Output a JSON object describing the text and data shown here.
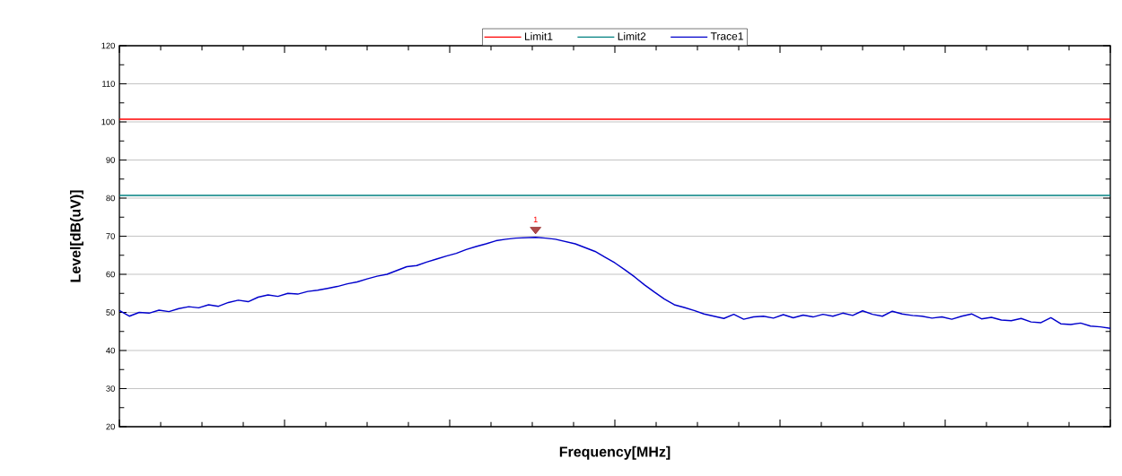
{
  "chart_data": {
    "type": "line",
    "xlabel": "Frequency[MHz]",
    "ylabel": "Level[dB(uV)]",
    "categories": [
      null,
      null,
      null,
      null,
      null,
      null,
      null,
      null,
      null,
      null,
      null,
      null,
      null,
      null,
      null,
      null,
      null,
      null,
      null,
      null,
      null,
      null,
      null,
      null,
      null,
      null,
      null,
      null,
      null,
      null,
      null,
      null,
      null,
      null,
      null,
      null,
      null,
      null,
      null,
      null,
      null,
      null,
      null,
      null,
      null,
      null,
      null,
      null,
      null,
      null,
      null,
      null,
      null,
      null,
      null,
      null,
      null,
      null,
      null,
      null,
      null,
      null,
      null,
      null,
      null,
      null,
      null,
      null,
      null,
      null,
      null,
      null,
      null,
      null,
      null,
      null,
      null,
      null,
      null,
      null,
      null,
      null,
      null,
      null,
      null,
      null,
      null,
      null,
      null,
      null,
      null,
      null,
      null,
      null,
      null,
      null,
      null,
      null,
      null,
      null,
      null
    ],
    "series": [
      {
        "name": "Limit1",
        "color": "#ff0000",
        "values": [
          100.7,
          100.7,
          100.7,
          100.7,
          100.7,
          100.7,
          100.7,
          100.7,
          100.7,
          100.7,
          100.7,
          100.7,
          100.7,
          100.7,
          100.7,
          100.7,
          100.7,
          100.7,
          100.7,
          100.7,
          100.7,
          100.7,
          100.7,
          100.7,
          100.7,
          100.7,
          100.7,
          100.7,
          100.7,
          100.7,
          100.7,
          100.7,
          100.7,
          100.7,
          100.7,
          100.7,
          100.7,
          100.7,
          100.7,
          100.7,
          100.7,
          100.7,
          100.7,
          100.7,
          100.7,
          100.7,
          100.7,
          100.7,
          100.7,
          100.7,
          100.7,
          100.7,
          100.7,
          100.7,
          100.7,
          100.7,
          100.7,
          100.7,
          100.7,
          100.7,
          100.7,
          100.7,
          100.7,
          100.7,
          100.7,
          100.7,
          100.7,
          100.7,
          100.7,
          100.7,
          100.7,
          100.7,
          100.7,
          100.7,
          100.7,
          100.7,
          100.7,
          100.7,
          100.7,
          100.7,
          100.7,
          100.7,
          100.7,
          100.7,
          100.7,
          100.7,
          100.7,
          100.7,
          100.7,
          100.7,
          100.7,
          100.7,
          100.7,
          100.7,
          100.7,
          100.7,
          100.7,
          100.7,
          100.7,
          100.7,
          100.7
        ]
      },
      {
        "name": "Limit2",
        "color": "#008080",
        "values": [
          80.7,
          80.7,
          80.7,
          80.7,
          80.7,
          80.7,
          80.7,
          80.7,
          80.7,
          80.7,
          80.7,
          80.7,
          80.7,
          80.7,
          80.7,
          80.7,
          80.7,
          80.7,
          80.7,
          80.7,
          80.7,
          80.7,
          80.7,
          80.7,
          80.7,
          80.7,
          80.7,
          80.7,
          80.7,
          80.7,
          80.7,
          80.7,
          80.7,
          80.7,
          80.7,
          80.7,
          80.7,
          80.7,
          80.7,
          80.7,
          80.7,
          80.7,
          80.7,
          80.7,
          80.7,
          80.7,
          80.7,
          80.7,
          80.7,
          80.7,
          80.7,
          80.7,
          80.7,
          80.7,
          80.7,
          80.7,
          80.7,
          80.7,
          80.7,
          80.7,
          80.7,
          80.7,
          80.7,
          80.7,
          80.7,
          80.7,
          80.7,
          80.7,
          80.7,
          80.7,
          80.7,
          80.7,
          80.7,
          80.7,
          80.7,
          80.7,
          80.7,
          80.7,
          80.7,
          80.7,
          80.7,
          80.7,
          80.7,
          80.7,
          80.7,
          80.7,
          80.7,
          80.7,
          80.7,
          80.7,
          80.7,
          80.7,
          80.7,
          80.7,
          80.7,
          80.7,
          80.7,
          80.7,
          80.7,
          80.7,
          80.7
        ]
      },
      {
        "name": "Trace1",
        "color": "#0000cc",
        "values": [
          50.5,
          49.0,
          50.0,
          49.8,
          50.6,
          50.2,
          51.0,
          51.5,
          51.2,
          52.0,
          51.6,
          52.6,
          53.2,
          52.8,
          54.0,
          54.6,
          54.2,
          55.0,
          54.8,
          55.5,
          55.8,
          56.3,
          56.8,
          57.5,
          58.0,
          58.8,
          59.5,
          60.0,
          61.0,
          62.0,
          62.3,
          63.2,
          64.0,
          64.8,
          65.5,
          66.5,
          67.3,
          68.0,
          68.8,
          69.2,
          69.5,
          69.6,
          69.7,
          69.5,
          69.2,
          68.6,
          68.0,
          67.0,
          66.0,
          64.5,
          63.0,
          61.2,
          59.3,
          57.2,
          55.3,
          53.5,
          52.0,
          51.3,
          50.5,
          49.6,
          49.0,
          48.4,
          49.5,
          48.2,
          48.8,
          49.0,
          48.5,
          49.4,
          48.6,
          49.3,
          48.8,
          49.5,
          49.0,
          49.8,
          49.2,
          50.4,
          49.5,
          49.0,
          50.3,
          49.6,
          49.2,
          49.0,
          48.5,
          48.8,
          48.2,
          49.0,
          49.6,
          48.3,
          48.7,
          48.0,
          47.8,
          48.4,
          47.5,
          47.3,
          48.6,
          47.0,
          46.8,
          47.2,
          46.4,
          46.2,
          45.8
        ]
      }
    ],
    "ylim": [
      20,
      120
    ],
    "yticks": [
      20,
      30,
      40,
      50,
      60,
      70,
      80,
      90,
      100,
      110,
      120
    ],
    "grid": "y",
    "legend": "top",
    "annotations": [
      {
        "text": "1",
        "y": 69.7
      }
    ]
  }
}
